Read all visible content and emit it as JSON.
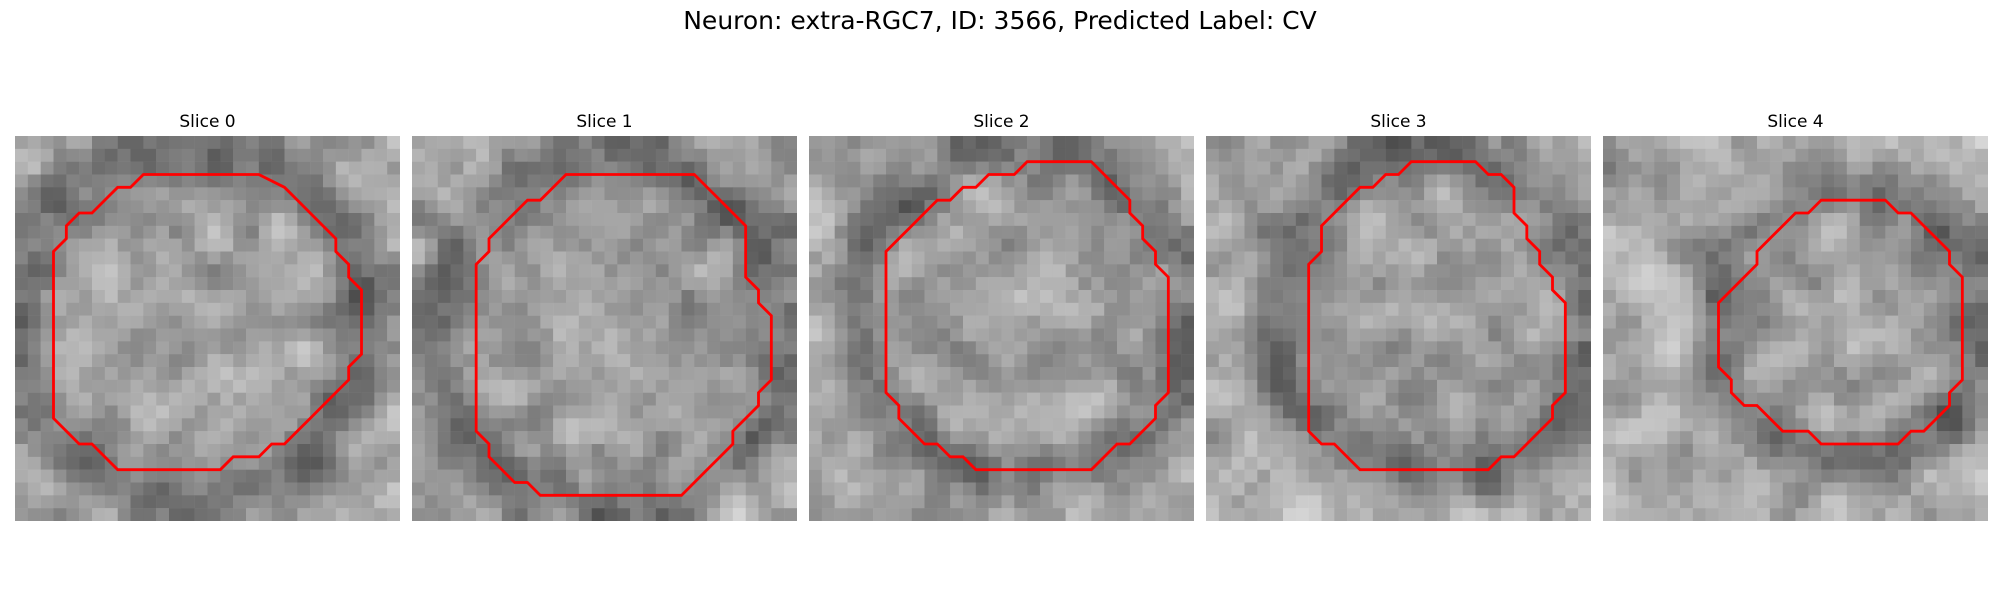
{
  "figure": {
    "title": "Neuron: extra-RGC7, ID: 3566, Predicted Label: CV",
    "contour_color": "#ff0000"
  },
  "panels": [
    {
      "title": "Slice 0",
      "seed": 11,
      "contour": [
        [
          10,
          3
        ],
        [
          19,
          3
        ],
        [
          21,
          4
        ],
        [
          22,
          5
        ],
        [
          23,
          6
        ],
        [
          24,
          7
        ],
        [
          25,
          8
        ],
        [
          25,
          9
        ],
        [
          26,
          10
        ],
        [
          26,
          11
        ],
        [
          27,
          12
        ],
        [
          27,
          13
        ],
        [
          27,
          14
        ],
        [
          27,
          15
        ],
        [
          27,
          16
        ],
        [
          27,
          17
        ],
        [
          26,
          18
        ],
        [
          26,
          19
        ],
        [
          25,
          20
        ],
        [
          24,
          21
        ],
        [
          23,
          22
        ],
        [
          22,
          23
        ],
        [
          21,
          24
        ],
        [
          20,
          24
        ],
        [
          19,
          25
        ],
        [
          17,
          25
        ],
        [
          16,
          26
        ],
        [
          8,
          26
        ],
        [
          7,
          25
        ],
        [
          6,
          24
        ],
        [
          5,
          24
        ],
        [
          4,
          23
        ],
        [
          3,
          22
        ],
        [
          3,
          21
        ],
        [
          3,
          20
        ],
        [
          3,
          19
        ],
        [
          3,
          18
        ],
        [
          3,
          17
        ],
        [
          3,
          16
        ],
        [
          3,
          15
        ],
        [
          3,
          14
        ],
        [
          3,
          13
        ],
        [
          3,
          12
        ],
        [
          3,
          11
        ],
        [
          3,
          10
        ],
        [
          3,
          9
        ],
        [
          4,
          8
        ],
        [
          4,
          7
        ],
        [
          5,
          6
        ],
        [
          6,
          6
        ],
        [
          7,
          5
        ],
        [
          8,
          4
        ],
        [
          9,
          4
        ]
      ]
    },
    {
      "title": "Slice 1",
      "seed": 23,
      "contour": [
        [
          12,
          3
        ],
        [
          22,
          3
        ],
        [
          23,
          4
        ],
        [
          24,
          5
        ],
        [
          25,
          6
        ],
        [
          26,
          7
        ],
        [
          26,
          8
        ],
        [
          26,
          9
        ],
        [
          26,
          10
        ],
        [
          26,
          11
        ],
        [
          27,
          12
        ],
        [
          27,
          13
        ],
        [
          28,
          14
        ],
        [
          28,
          15
        ],
        [
          28,
          16
        ],
        [
          28,
          17
        ],
        [
          28,
          18
        ],
        [
          28,
          19
        ],
        [
          27,
          20
        ],
        [
          27,
          21
        ],
        [
          26,
          22
        ],
        [
          25,
          23
        ],
        [
          25,
          24
        ],
        [
          24,
          25
        ],
        [
          23,
          26
        ],
        [
          22,
          27
        ],
        [
          21,
          28
        ],
        [
          10,
          28
        ],
        [
          9,
          27
        ],
        [
          8,
          27
        ],
        [
          7,
          26
        ],
        [
          6,
          25
        ],
        [
          6,
          24
        ],
        [
          5,
          23
        ],
        [
          5,
          22
        ],
        [
          5,
          21
        ],
        [
          5,
          20
        ],
        [
          5,
          19
        ],
        [
          5,
          18
        ],
        [
          5,
          17
        ],
        [
          5,
          16
        ],
        [
          5,
          15
        ],
        [
          5,
          14
        ],
        [
          5,
          13
        ],
        [
          5,
          12
        ],
        [
          5,
          11
        ],
        [
          5,
          10
        ],
        [
          6,
          9
        ],
        [
          6,
          8
        ],
        [
          7,
          7
        ],
        [
          8,
          6
        ],
        [
          9,
          5
        ],
        [
          10,
          5
        ],
        [
          11,
          4
        ]
      ]
    },
    {
      "title": "Slice 2",
      "seed": 37,
      "contour": [
        [
          17,
          2
        ],
        [
          22,
          2
        ],
        [
          23,
          3
        ],
        [
          24,
          4
        ],
        [
          25,
          5
        ],
        [
          25,
          6
        ],
        [
          26,
          7
        ],
        [
          26,
          8
        ],
        [
          27,
          9
        ],
        [
          27,
          10
        ],
        [
          28,
          11
        ],
        [
          28,
          12
        ],
        [
          28,
          13
        ],
        [
          28,
          14
        ],
        [
          28,
          15
        ],
        [
          28,
          16
        ],
        [
          28,
          17
        ],
        [
          28,
          18
        ],
        [
          28,
          19
        ],
        [
          28,
          20
        ],
        [
          27,
          21
        ],
        [
          27,
          22
        ],
        [
          26,
          23
        ],
        [
          25,
          24
        ],
        [
          24,
          24
        ],
        [
          23,
          25
        ],
        [
          22,
          26
        ],
        [
          13,
          26
        ],
        [
          12,
          25
        ],
        [
          11,
          25
        ],
        [
          10,
          24
        ],
        [
          9,
          24
        ],
        [
          8,
          23
        ],
        [
          7,
          22
        ],
        [
          7,
          21
        ],
        [
          6,
          20
        ],
        [
          6,
          19
        ],
        [
          6,
          18
        ],
        [
          6,
          17
        ],
        [
          6,
          16
        ],
        [
          6,
          15
        ],
        [
          6,
          14
        ],
        [
          6,
          13
        ],
        [
          6,
          12
        ],
        [
          6,
          11
        ],
        [
          6,
          10
        ],
        [
          6,
          9
        ],
        [
          7,
          8
        ],
        [
          8,
          7
        ],
        [
          9,
          6
        ],
        [
          10,
          5
        ],
        [
          11,
          5
        ],
        [
          12,
          4
        ],
        [
          13,
          4
        ],
        [
          14,
          3
        ],
        [
          16,
          3
        ]
      ]
    },
    {
      "title": "Slice 3",
      "seed": 53,
      "contour": [
        [
          16,
          2
        ],
        [
          21,
          2
        ],
        [
          22,
          3
        ],
        [
          23,
          3
        ],
        [
          24,
          4
        ],
        [
          24,
          5
        ],
        [
          24,
          6
        ],
        [
          25,
          7
        ],
        [
          25,
          8
        ],
        [
          26,
          9
        ],
        [
          26,
          10
        ],
        [
          27,
          11
        ],
        [
          27,
          12
        ],
        [
          28,
          13
        ],
        [
          28,
          14
        ],
        [
          28,
          15
        ],
        [
          28,
          16
        ],
        [
          28,
          17
        ],
        [
          28,
          18
        ],
        [
          28,
          19
        ],
        [
          28,
          20
        ],
        [
          27,
          21
        ],
        [
          27,
          22
        ],
        [
          26,
          23
        ],
        [
          25,
          24
        ],
        [
          24,
          25
        ],
        [
          23,
          25
        ],
        [
          22,
          26
        ],
        [
          12,
          26
        ],
        [
          11,
          25
        ],
        [
          10,
          24
        ],
        [
          9,
          24
        ],
        [
          8,
          23
        ],
        [
          8,
          22
        ],
        [
          8,
          21
        ],
        [
          8,
          20
        ],
        [
          8,
          19
        ],
        [
          8,
          18
        ],
        [
          8,
          17
        ],
        [
          8,
          16
        ],
        [
          8,
          15
        ],
        [
          8,
          14
        ],
        [
          8,
          13
        ],
        [
          8,
          12
        ],
        [
          8,
          11
        ],
        [
          8,
          10
        ],
        [
          9,
          9
        ],
        [
          9,
          8
        ],
        [
          9,
          7
        ],
        [
          10,
          6
        ],
        [
          11,
          5
        ],
        [
          12,
          4
        ],
        [
          13,
          4
        ],
        [
          14,
          3
        ],
        [
          15,
          3
        ]
      ]
    },
    {
      "title": "Slice 4",
      "seed": 71,
      "contour": [
        [
          17,
          5
        ],
        [
          22,
          5
        ],
        [
          23,
          6
        ],
        [
          24,
          6
        ],
        [
          25,
          7
        ],
        [
          26,
          8
        ],
        [
          27,
          9
        ],
        [
          27,
          10
        ],
        [
          28,
          11
        ],
        [
          28,
          12
        ],
        [
          28,
          13
        ],
        [
          28,
          14
        ],
        [
          28,
          15
        ],
        [
          28,
          16
        ],
        [
          28,
          17
        ],
        [
          28,
          18
        ],
        [
          28,
          19
        ],
        [
          27,
          20
        ],
        [
          27,
          21
        ],
        [
          26,
          22
        ],
        [
          25,
          23
        ],
        [
          24,
          23
        ],
        [
          23,
          24
        ],
        [
          17,
          24
        ],
        [
          16,
          23
        ],
        [
          14,
          23
        ],
        [
          13,
          22
        ],
        [
          12,
          21
        ],
        [
          11,
          21
        ],
        [
          10,
          20
        ],
        [
          10,
          19
        ],
        [
          9,
          18
        ],
        [
          9,
          17
        ],
        [
          9,
          16
        ],
        [
          9,
          15
        ],
        [
          9,
          14
        ],
        [
          9,
          13
        ],
        [
          10,
          12
        ],
        [
          11,
          11
        ],
        [
          12,
          10
        ],
        [
          12,
          9
        ],
        [
          13,
          8
        ],
        [
          14,
          7
        ],
        [
          15,
          6
        ],
        [
          16,
          6
        ]
      ]
    }
  ]
}
